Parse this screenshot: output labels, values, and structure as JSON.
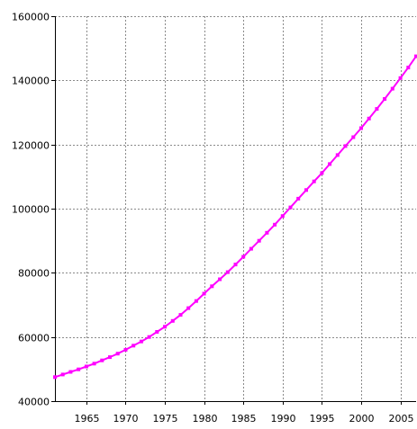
{
  "chart_data": {
    "type": "line",
    "title": "",
    "xlabel": "",
    "ylabel": "",
    "xlim": [
      1961,
      2007
    ],
    "ylim": [
      40000,
      160000
    ],
    "x_ticks": [
      1965,
      1970,
      1975,
      1980,
      1985,
      1990,
      1995,
      2000,
      2005
    ],
    "x_tick_labels": [
      "1965",
      "1970",
      "1975",
      "1980",
      "1985",
      "1990",
      "1995",
      "2000",
      "2005"
    ],
    "y_ticks": [
      40000,
      60000,
      80000,
      100000,
      120000,
      140000,
      160000
    ],
    "y_tick_labels": [
      "40000",
      "60000",
      "80000",
      "100000",
      "120000",
      "140000",
      "160000"
    ],
    "grid": true,
    "line_color": "#ff00ff",
    "series": [
      {
        "x": [
          1961,
          1962,
          1963,
          1964,
          1965,
          1966,
          1967,
          1968,
          1969,
          1970,
          1971,
          1972,
          1973,
          1974,
          1975,
          1976,
          1977,
          1978,
          1979,
          1980,
          1981,
          1982,
          1983,
          1984,
          1985,
          1986,
          1987,
          1988,
          1989,
          1990,
          1991,
          1992,
          1993,
          1994,
          1995,
          1996,
          1997,
          1998,
          1999,
          2000,
          2001,
          2002,
          2003,
          2004,
          2005,
          2006,
          2007
        ],
        "y": [
          47500,
          48300,
          49100,
          49900,
          50800,
          51700,
          52700,
          53700,
          54800,
          56000,
          57300,
          58600,
          60000,
          61600,
          63200,
          65000,
          66900,
          69000,
          71200,
          73500,
          75800,
          78000,
          80200,
          82600,
          85000,
          87500,
          90000,
          92500,
          95000,
          97700,
          100400,
          103100,
          105800,
          108500,
          111100,
          113900,
          116700,
          119500,
          122300,
          125100,
          128100,
          131100,
          134200,
          137400,
          140700,
          144000,
          147500
        ]
      }
    ]
  }
}
